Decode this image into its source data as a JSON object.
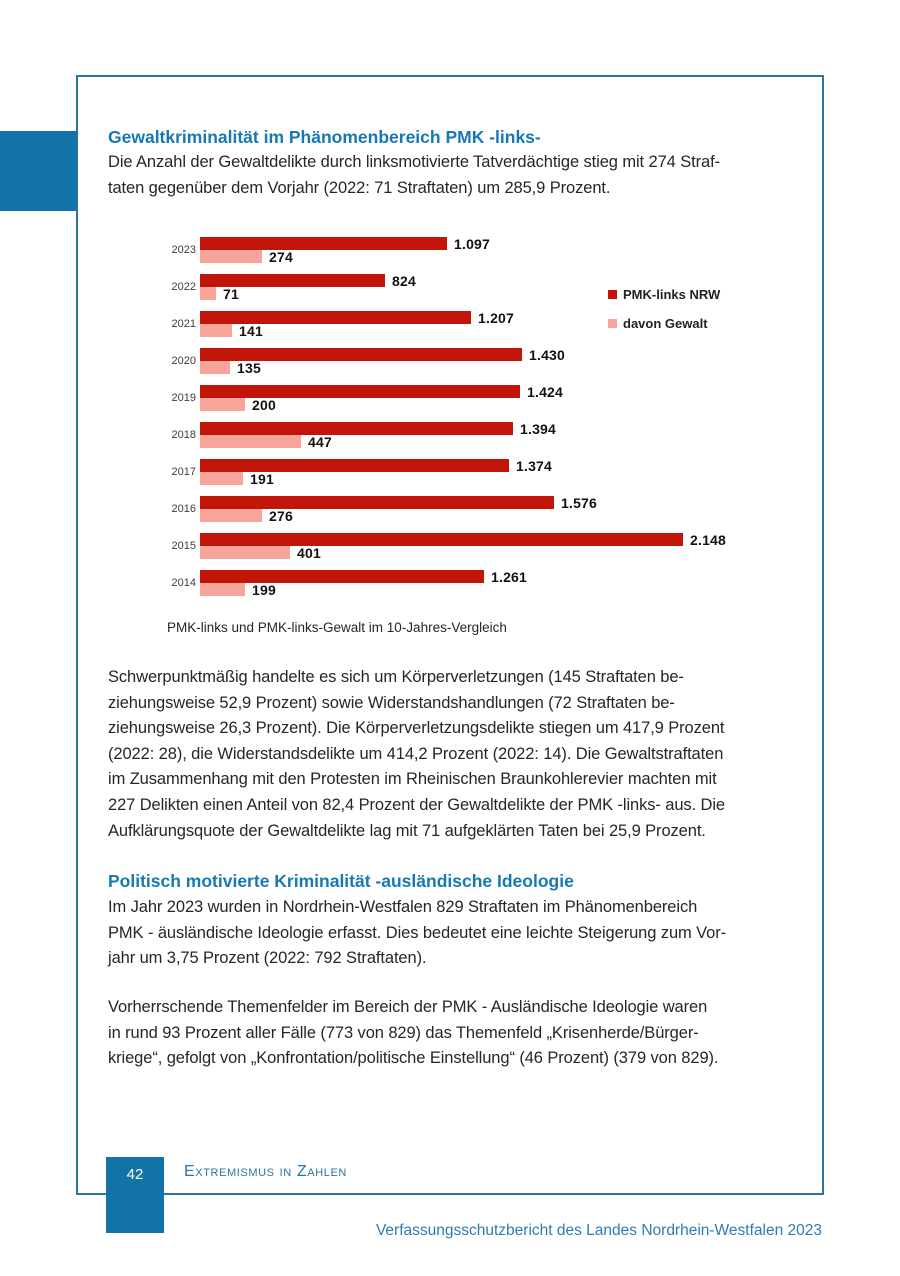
{
  "sections": [
    {
      "heading": "Gewaltkriminalität im Phänomenbereich PMK -links-",
      "paragraphs": [
        "Die Anzahl der Gewaltdelikte durch linksmotivierte Tatverdächtige stieg mit 274 Straf-\ntaten gegenüber dem Vorjahr (2022: 71 Straftaten) um 285,9 Prozent.",
        "Schwerpunktmäßig handelte es sich um Körperverletzungen (145 Straftaten be-\nziehungsweise 52,9 Prozent) sowie Widerstandshandlungen (72 Straftaten be-\nziehungsweise 26,3 Prozent). Die Körperverletzungsdelikte stiegen um 417,9 Prozent\n(2022: 28), die Widerstandsdelikte um 414,2 Prozent (2022: 14). Die Gewaltstraftaten\nim Zusammenhang mit den Protesten im Rheinischen Braunkohlerevier machten mit\n227 Delikten einen Anteil von 82,4 Prozent der Gewaltdelikte der PMK -links- aus. Die\nAufklärungsquote der Gewaltdelikte lag mit 71 aufgeklärten Taten bei 25,9 Prozent."
      ]
    },
    {
      "heading": "Politisch motivierte Kriminalität -ausländische Ideologie",
      "paragraphs": [
        "Im Jahr 2023 wurden in Nordrhein-Westfalen 829 Straftaten im Phänomenbereich\nPMK - äusländische Ideologie erfasst. Dies bedeutet eine leichte Steigerung zum Vor-\njahr um 3,75 Prozent (2022: 792 Straftaten).",
        "Vorherrschende Themenfelder im Bereich der PMK - Ausländische Ideologie waren\nin rund 93 Prozent aller Fälle (773 von 829) das Themenfeld „Krisenherde/Bürger-\nkriege“, gefolgt von „Konfrontation/politische Einstellung“ (46 Prozent) (379 von 829)."
      ]
    }
  ],
  "chart_data": {
    "type": "bar",
    "orientation": "horizontal",
    "title": "",
    "caption": "PMK-links und PMK-links-Gewalt im 10-Jahres-Vergleich",
    "categories": [
      "2023",
      "2022",
      "2021",
      "2020",
      "2019",
      "2018",
      "2017",
      "2016",
      "2015",
      "2014"
    ],
    "series": [
      {
        "name": "PMK-links NRW",
        "color": "#c01508",
        "values": [
          1097,
          824,
          1207,
          1430,
          1424,
          1394,
          1374,
          1576,
          2148,
          1261
        ],
        "labels": [
          "1.097",
          "824",
          "1.207",
          "1.430",
          "1.424",
          "1.394",
          "1.374",
          "1.576",
          "2.148",
          "1.261"
        ]
      },
      {
        "name": "davon Gewalt",
        "color": "#f7a49b",
        "values": [
          274,
          71,
          141,
          135,
          200,
          447,
          191,
          276,
          401,
          199
        ],
        "labels": [
          "274",
          "71",
          "141",
          "135",
          "200",
          "447",
          "191",
          "276",
          "401",
          "199"
        ]
      }
    ],
    "xmax": 2148,
    "grid": false,
    "legend_position": "right"
  },
  "footer": {
    "page_number": "42",
    "section_title": "Extremismus in Zahlen",
    "report_title": "Verfassungsschutzbericht des Landes Nordrhein-Westfalen 2023"
  },
  "colors": {
    "accent_blue": "#1779b3",
    "frame_blue": "#2a74a6",
    "tab_blue": "#1173a7",
    "bar_dark_red": "#c01508",
    "bar_light_pink": "#f7a49b",
    "body_text": "#262626"
  }
}
